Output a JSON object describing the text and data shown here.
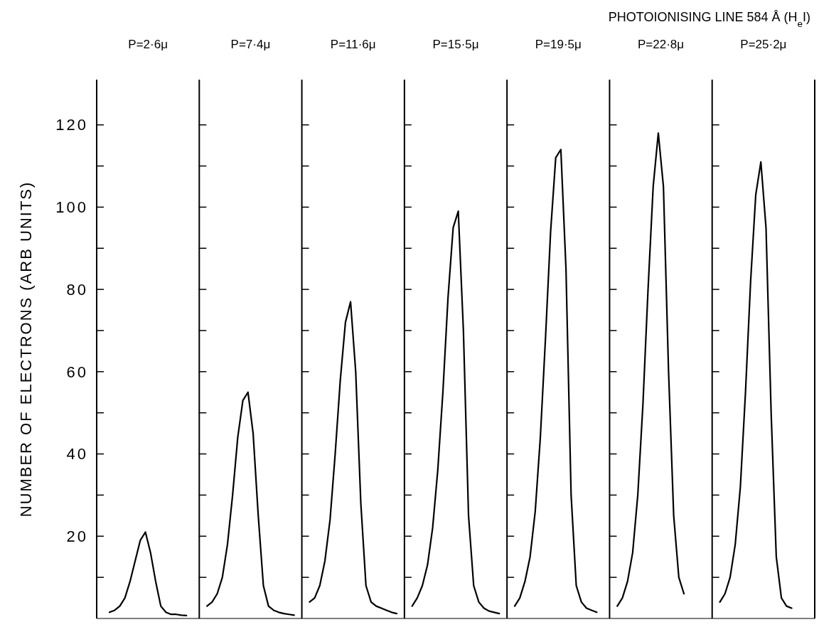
{
  "chart_data": {
    "type": "line",
    "title": "PHOTOIONISING LINE 584 Å (H$_{e}$I)",
    "ylabel": "NUMBER OF ELECTRONS (ARB UNITS)",
    "categories": [
      null,
      null,
      null,
      null,
      null,
      null,
      null,
      null,
      null,
      null,
      null,
      null,
      null,
      null,
      null,
      null,
      null,
      null,
      null,
      null,
      null,
      null,
      null,
      null,
      null,
      null,
      null,
      null,
      null,
      null,
      null,
      null,
      null,
      null,
      null,
      null,
      null,
      null,
      null,
      null,
      null,
      null,
      null,
      null,
      null,
      null,
      null,
      null,
      null,
      null,
      null,
      null,
      null,
      null,
      null,
      null,
      null,
      null,
      null,
      null,
      null,
      null,
      null,
      null,
      null,
      null,
      null,
      null,
      null,
      null,
      null,
      null,
      null,
      null,
      null,
      null,
      null,
      null,
      null,
      null,
      null,
      null,
      null,
      null,
      null,
      null,
      null,
      null,
      null,
      null,
      null,
      null,
      null,
      null,
      null,
      null,
      null,
      null,
      null,
      null,
      null,
      null,
      null,
      null,
      null,
      null,
      null,
      null,
      null,
      null,
      null,
      null,
      null,
      null,
      null,
      null,
      null,
      null,
      null,
      null,
      null,
      null,
      null,
      null,
      null,
      null,
      null,
      null,
      null,
      null,
      null,
      null,
      null,
      null,
      null,
      null,
      null,
      null,
      null,
      null
    ],
    "annotations": [
      "P=2·6μ",
      "P=7·4μ",
      "P=11·6μ",
      "P=15·5μ",
      "P=19·5μ",
      "P=22·8μ",
      "P=25·2μ"
    ],
    "ylim": [
      0,
      131
    ],
    "yticks": [
      {
        "value": 10,
        "label": null
      },
      20,
      {
        "value": 30,
        "label": null
      },
      40,
      {
        "value": 50,
        "label": null
      },
      60,
      {
        "value": 70,
        "label": null
      },
      80,
      {
        "value": 90,
        "label": null
      },
      100,
      {
        "value": 110,
        "label": null
      },
      120
    ],
    "tick_labels": "y",
    "series": [
      {
        "color": "#000000",
        "values": [
          null,
          null,
          1.5,
          2,
          3,
          5,
          9,
          14,
          19,
          21,
          16,
          9,
          3,
          1.5,
          1,
          1,
          0.8,
          0.7,
          null,
          null,
          null,
          null,
          null,
          null,
          null,
          null,
          null,
          null,
          null,
          null,
          null,
          null,
          null,
          null,
          null,
          null,
          null,
          null,
          null,
          null,
          null,
          null,
          null,
          null,
          null,
          null,
          null,
          null,
          null,
          null,
          null,
          null,
          null,
          null,
          null,
          null,
          null,
          null,
          null,
          null,
          null,
          null,
          null,
          null,
          null,
          null,
          null,
          null,
          null,
          null,
          null,
          null,
          null,
          null,
          null,
          null,
          null,
          null,
          null,
          null,
          null,
          null,
          null,
          null,
          null,
          null,
          null,
          null,
          null,
          null,
          null,
          null,
          null,
          null,
          null,
          null,
          null,
          null,
          null,
          null,
          null,
          null,
          null,
          null,
          null,
          null,
          null,
          null,
          null,
          null,
          null,
          null,
          null,
          null,
          null,
          null,
          null,
          null,
          null,
          null,
          null,
          null,
          null,
          null,
          null,
          null,
          null,
          null,
          null,
          null,
          null,
          null,
          null,
          null,
          null,
          null,
          null,
          null,
          null,
          null
        ]
      },
      {
        "color": "#000000",
        "values": [
          null,
          null,
          null,
          null,
          null,
          null,
          null,
          null,
          null,
          null,
          null,
          null,
          null,
          null,
          null,
          null,
          null,
          null,
          null,
          null,
          null,
          3,
          4,
          6,
          10,
          18,
          30,
          44,
          53,
          55,
          45,
          25,
          8,
          3,
          2,
          1.5,
          1.2,
          1,
          0.8,
          null,
          null,
          null,
          null,
          null,
          null,
          null,
          null,
          null,
          null,
          null,
          null,
          null,
          null,
          null,
          null,
          null,
          null,
          null,
          null,
          null,
          null,
          null,
          null,
          null,
          null,
          null,
          null,
          null,
          null,
          null,
          null,
          null,
          null,
          null,
          null,
          null,
          null,
          null,
          null,
          null,
          null,
          null,
          null,
          null,
          null,
          null,
          null,
          null,
          null,
          null,
          null,
          null,
          null,
          null,
          null,
          null,
          null,
          null,
          null,
          null,
          null,
          null,
          null,
          null,
          null,
          null,
          null,
          null,
          null,
          null,
          null,
          null,
          null,
          null,
          null,
          null,
          null,
          null,
          null,
          null,
          null,
          null,
          null,
          null,
          null,
          null,
          null,
          null,
          null,
          null,
          null,
          null,
          null,
          null,
          null,
          null,
          null,
          null,
          null,
          null
        ]
      },
      {
        "color": "#000000",
        "values": [
          null,
          null,
          null,
          null,
          null,
          null,
          null,
          null,
          null,
          null,
          null,
          null,
          null,
          null,
          null,
          null,
          null,
          null,
          null,
          null,
          null,
          null,
          null,
          null,
          null,
          null,
          null,
          null,
          null,
          null,
          null,
          null,
          null,
          null,
          null,
          null,
          null,
          null,
          null,
          null,
          null,
          4,
          5,
          8,
          14,
          24,
          40,
          58,
          72,
          77,
          60,
          28,
          8,
          4,
          3,
          2.5,
          2,
          1.5,
          1.2,
          null,
          null,
          null,
          null,
          null,
          null,
          null,
          null,
          null,
          null,
          null,
          null,
          null,
          null,
          null,
          null,
          null,
          null,
          null,
          null,
          null,
          null,
          null,
          null,
          null,
          null,
          null,
          null,
          null,
          null,
          null,
          null,
          null,
          null,
          null,
          null,
          null,
          null,
          null,
          null,
          null,
          null,
          null,
          null,
          null,
          null,
          null,
          null,
          null,
          null,
          null,
          null,
          null,
          null,
          null,
          null,
          null,
          null,
          null,
          null,
          null,
          null,
          null,
          null,
          null,
          null,
          null,
          null,
          null,
          null,
          null,
          null,
          null,
          null,
          null,
          null,
          null,
          null,
          null,
          null,
          null
        ]
      },
      {
        "color": "#000000",
        "values": [
          null,
          null,
          null,
          null,
          null,
          null,
          null,
          null,
          null,
          null,
          null,
          null,
          null,
          null,
          null,
          null,
          null,
          null,
          null,
          null,
          null,
          null,
          null,
          null,
          null,
          null,
          null,
          null,
          null,
          null,
          null,
          null,
          null,
          null,
          null,
          null,
          null,
          null,
          null,
          null,
          null,
          null,
          null,
          null,
          null,
          null,
          null,
          null,
          null,
          null,
          null,
          null,
          null,
          null,
          null,
          null,
          null,
          null,
          null,
          null,
          null,
          3,
          5,
          8,
          13,
          22,
          36,
          55,
          78,
          95,
          99,
          70,
          25,
          8,
          4,
          2.5,
          1.8,
          1.5,
          1.2,
          null,
          null,
          null,
          null,
          null,
          null,
          null,
          null,
          null,
          null,
          null,
          null,
          null,
          null,
          null,
          null,
          null,
          null,
          null,
          null,
          null,
          null,
          null,
          null,
          null,
          null,
          null,
          null,
          null,
          null,
          null,
          null,
          null,
          null,
          null,
          null,
          null,
          null,
          null,
          null,
          null,
          null,
          null,
          null,
          null,
          null,
          null,
          null,
          null,
          null,
          null,
          null,
          null,
          null,
          null,
          null,
          null,
          null,
          null,
          null,
          null
        ]
      },
      {
        "color": "#000000",
        "values": [
          null,
          null,
          null,
          null,
          null,
          null,
          null,
          null,
          null,
          null,
          null,
          null,
          null,
          null,
          null,
          null,
          null,
          null,
          null,
          null,
          null,
          null,
          null,
          null,
          null,
          null,
          null,
          null,
          null,
          null,
          null,
          null,
          null,
          null,
          null,
          null,
          null,
          null,
          null,
          null,
          null,
          null,
          null,
          null,
          null,
          null,
          null,
          null,
          null,
          null,
          null,
          null,
          null,
          null,
          null,
          null,
          null,
          null,
          null,
          null,
          null,
          null,
          null,
          null,
          null,
          null,
          null,
          null,
          null,
          null,
          null,
          null,
          null,
          null,
          null,
          null,
          null,
          null,
          null,
          null,
          null,
          3,
          5,
          9,
          15,
          26,
          44,
          68,
          94,
          112,
          114,
          85,
          30,
          8,
          4,
          2.5,
          2,
          1.5,
          null,
          null,
          null,
          null,
          null,
          null,
          null,
          null,
          null,
          null,
          null,
          null,
          null,
          null,
          null,
          null,
          null,
          null,
          null,
          null,
          null,
          null,
          null,
          null,
          null,
          null,
          null,
          null,
          null,
          null,
          null,
          null,
          null,
          null,
          null,
          null,
          null,
          null,
          null,
          null,
          null,
          null
        ]
      },
      {
        "color": "#000000",
        "values": [
          null,
          null,
          null,
          null,
          null,
          null,
          null,
          null,
          null,
          null,
          null,
          null,
          null,
          null,
          null,
          null,
          null,
          null,
          null,
          null,
          null,
          null,
          null,
          null,
          null,
          null,
          null,
          null,
          null,
          null,
          null,
          null,
          null,
          null,
          null,
          null,
          null,
          null,
          null,
          null,
          null,
          null,
          null,
          null,
          null,
          null,
          null,
          null,
          null,
          null,
          null,
          null,
          null,
          null,
          null,
          null,
          null,
          null,
          null,
          null,
          null,
          null,
          null,
          null,
          null,
          null,
          null,
          null,
          null,
          null,
          null,
          null,
          null,
          null,
          null,
          null,
          null,
          null,
          null,
          null,
          null,
          null,
          null,
          null,
          null,
          null,
          null,
          null,
          null,
          null,
          null,
          null,
          null,
          null,
          null,
          null,
          null,
          null,
          null,
          null,
          null,
          3,
          5,
          9,
          16,
          30,
          52,
          80,
          105,
          118,
          105,
          60,
          25,
          10,
          6,
          null,
          null,
          null,
          null,
          null,
          null,
          null,
          null,
          null,
          null,
          null,
          null,
          null,
          null,
          null,
          null,
          null,
          null,
          null,
          null,
          null,
          null,
          null,
          null,
          null
        ]
      },
      {
        "color": "#000000",
        "values": [
          null,
          null,
          null,
          null,
          null,
          null,
          null,
          null,
          null,
          null,
          null,
          null,
          null,
          null,
          null,
          null,
          null,
          null,
          null,
          null,
          null,
          null,
          null,
          null,
          null,
          null,
          null,
          null,
          null,
          null,
          null,
          null,
          null,
          null,
          null,
          null,
          null,
          null,
          null,
          null,
          null,
          null,
          null,
          null,
          null,
          null,
          null,
          null,
          null,
          null,
          null,
          null,
          null,
          null,
          null,
          null,
          null,
          null,
          null,
          null,
          null,
          null,
          null,
          null,
          null,
          null,
          null,
          null,
          null,
          null,
          null,
          null,
          null,
          null,
          null,
          null,
          null,
          null,
          null,
          null,
          null,
          null,
          null,
          null,
          null,
          null,
          null,
          null,
          null,
          null,
          null,
          null,
          null,
          null,
          null,
          null,
          null,
          null,
          null,
          null,
          null,
          null,
          null,
          null,
          null,
          null,
          null,
          null,
          null,
          null,
          null,
          null,
          null,
          null,
          null,
          null,
          null,
          null,
          null,
          null,
          null,
          4,
          6,
          10,
          18,
          32,
          55,
          82,
          103,
          111,
          95,
          50,
          15,
          5,
          3,
          2.5,
          null,
          null,
          null,
          null
        ]
      }
    ]
  }
}
